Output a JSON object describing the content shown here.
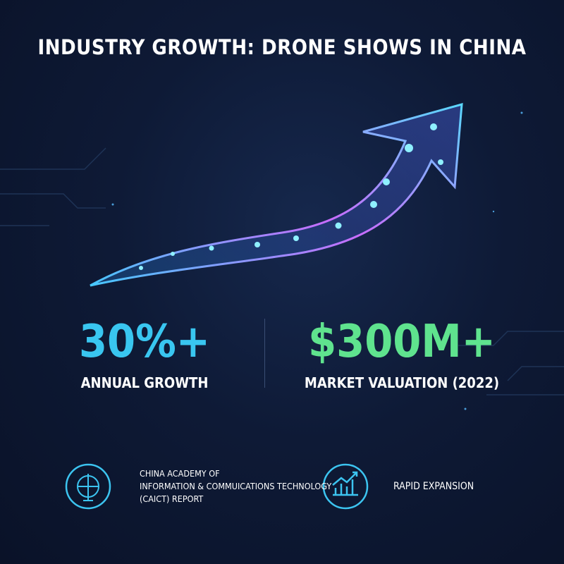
{
  "header": {
    "title": "INDUSTRY GROWTH: DRONE SHOWS IN CHINA"
  },
  "stats": [
    {
      "value": "30%+",
      "label": "ANNUAL GROWTH"
    },
    {
      "value": "$300M+",
      "label": "MARKET VALUATION (2022)"
    }
  ],
  "footer": [
    {
      "lines": [
        "CHINA ACADEMY OF",
        "INFORMATION & COMMUICATIONS TECHNOLOGY",
        "(CAICT) REPORT"
      ]
    },
    {
      "lines": [
        "RAPID EXPANSION"
      ]
    }
  ]
}
